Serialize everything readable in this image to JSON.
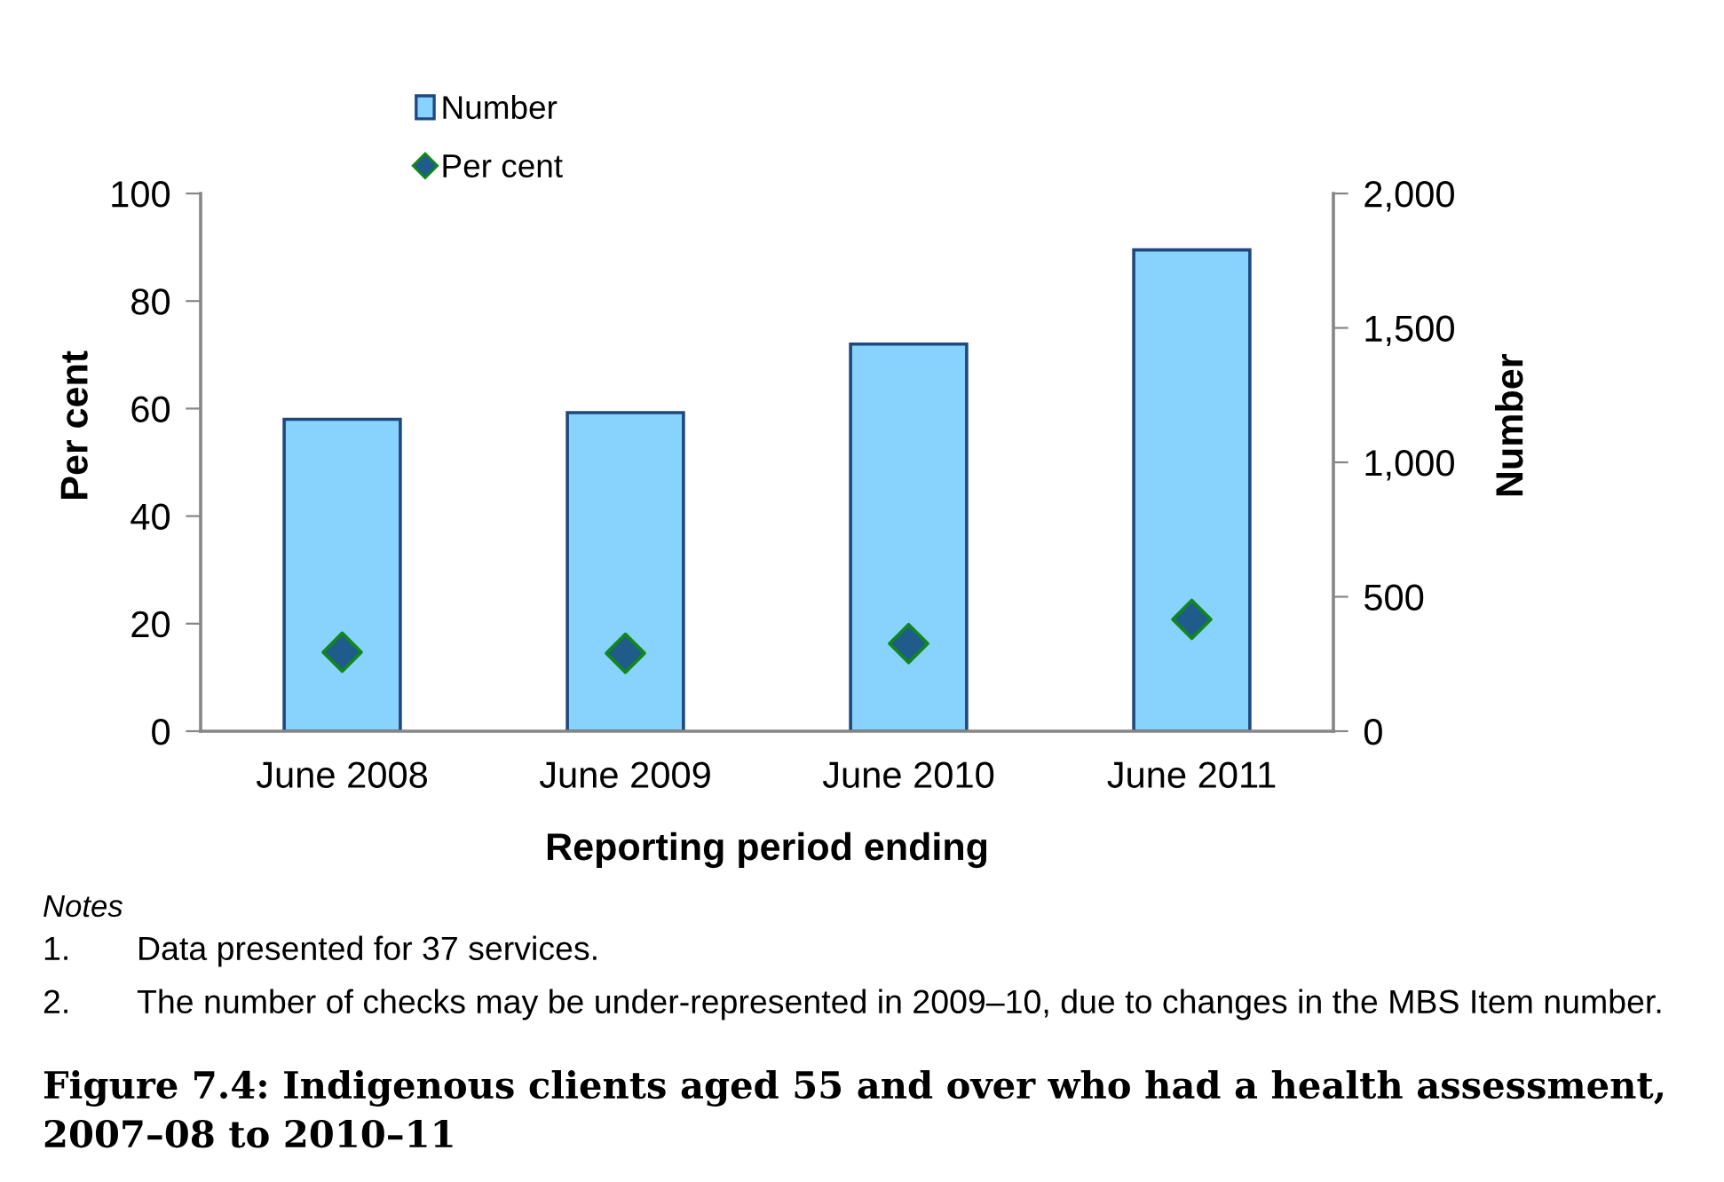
{
  "chart_data": {
    "type": "bar",
    "title": "Figure 7.4: Indigenous clients aged 55 and over who had a health assessment, 2007–08 to 2010–11",
    "xlabel": "Reporting period ending",
    "ylabel": "Per cent",
    "y2label": "Number",
    "categories": [
      "June 2008",
      "June 2009",
      "June 2010",
      "June 2011"
    ],
    "series": [
      {
        "name": "Number",
        "axis": "y2",
        "color": "#87d3fe",
        "values": [
          1160,
          1185,
          1440,
          1790
        ]
      },
      {
        "name": "Per cent",
        "type": "scatter",
        "axis": "y",
        "color": "#1f5c8c",
        "marker": "diamond",
        "values": [
          14.7,
          14.5,
          16.3,
          20.8
        ]
      }
    ],
    "ylim": [
      0,
      100
    ],
    "yticks": [
      0,
      20,
      40,
      60,
      80,
      100
    ],
    "y2lim": [
      0,
      2000
    ],
    "y2ticks": [
      0,
      500,
      {
        "value": 1000,
        "label": "1,000"
      },
      {
        "value": 1500,
        "label": "1,500"
      },
      {
        "value": 2000,
        "label": "2,000"
      }
    ],
    "legend": "top",
    "annotations": [
      "Notes",
      "1.",
      "Data presented for 37 services.",
      "2.",
      "The number of checks may be under-represented in 2009–10, due to changes in the MBS Item number."
    ]
  }
}
